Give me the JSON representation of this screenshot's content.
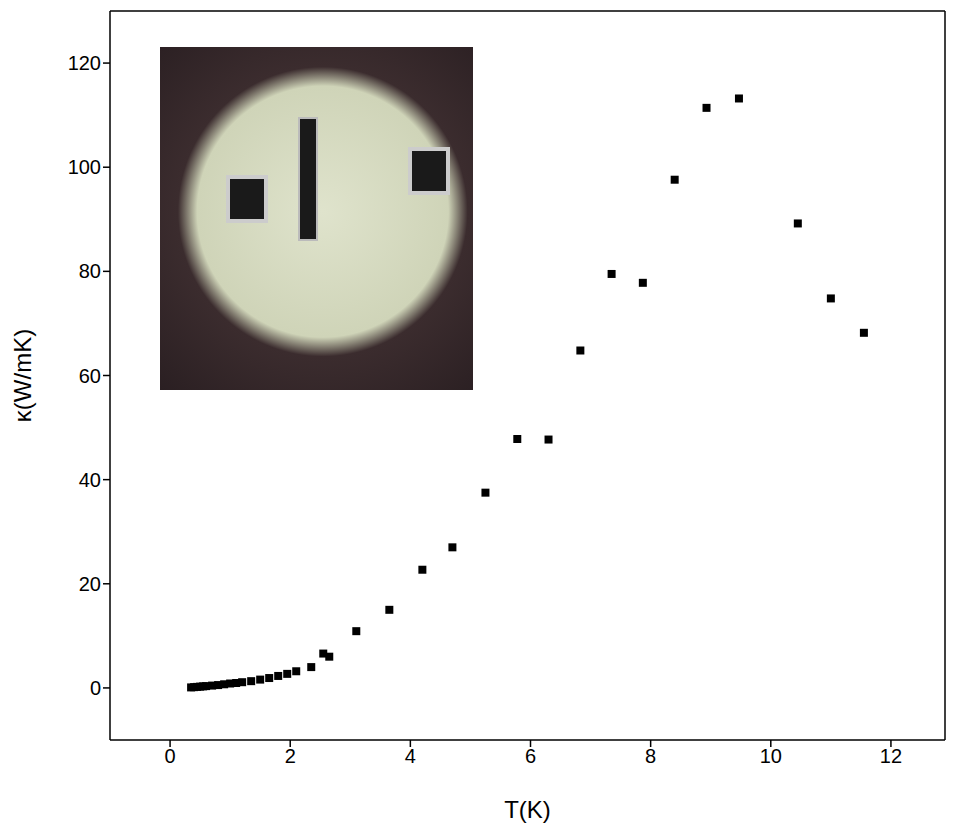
{
  "chart_data": {
    "type": "scatter",
    "x_label": "T(K)",
    "y_label": "κ(W/mK)",
    "x": [
      0.35,
      0.4,
      0.45,
      0.5,
      0.55,
      0.6,
      0.7,
      0.8,
      0.9,
      1.0,
      1.1,
      1.2,
      1.35,
      1.5,
      1.65,
      1.8,
      1.95,
      2.1,
      2.35,
      2.55,
      2.65,
      3.1,
      3.65,
      4.2,
      4.7,
      5.25,
      5.78,
      6.3,
      6.83,
      7.35,
      7.87,
      8.4,
      8.93,
      9.47,
      10.45,
      11.0,
      11.55
    ],
    "values": [
      0.1,
      0.15,
      0.2,
      0.25,
      0.3,
      0.35,
      0.45,
      0.55,
      0.7,
      0.85,
      0.95,
      1.1,
      1.3,
      1.6,
      1.9,
      2.3,
      2.7,
      3.2,
      4.0,
      6.6,
      6.0,
      10.9,
      15.0,
      22.7,
      27.0,
      37.5,
      47.8,
      47.7,
      64.8,
      79.5,
      77.8,
      97.6,
      111.4,
      113.2,
      89.2,
      74.8,
      68.2
    ],
    "xlim": [
      -1,
      12.9
    ],
    "ylim": [
      -10,
      130
    ],
    "xticks": [
      0,
      2,
      4,
      6,
      8,
      10,
      12
    ],
    "yticks": [
      0,
      20,
      40,
      60,
      80,
      100,
      120
    ],
    "color": "#000000",
    "marker": "square"
  }
}
